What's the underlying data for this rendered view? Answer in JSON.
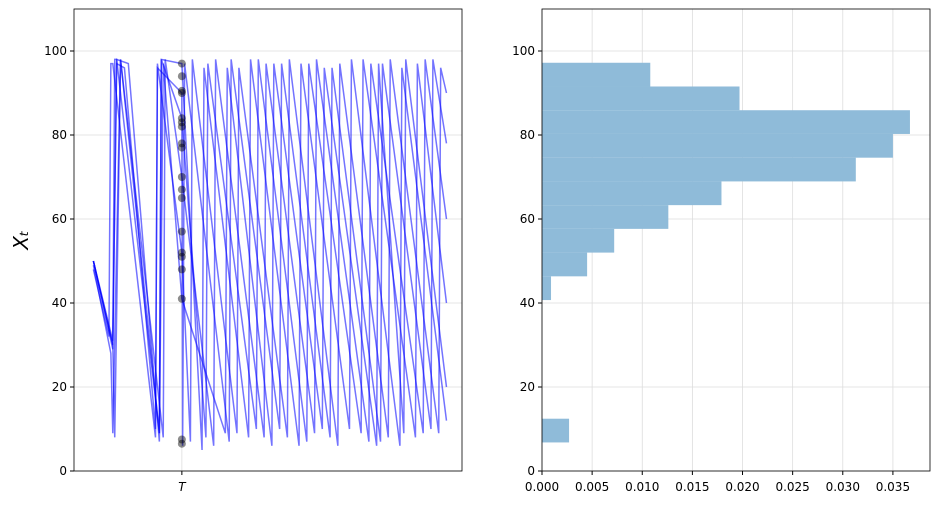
{
  "chart_data": [
    {
      "type": "line",
      "ylabel": "Xₜ",
      "xlim": [
        0,
        100
      ],
      "ylim": [
        0,
        110
      ],
      "xticks": [
        {
          "value": 27.8,
          "label": "T"
        }
      ],
      "yticks": [
        0,
        20,
        40,
        60,
        80,
        100
      ],
      "grid": true,
      "series": [
        {
          "color": "#0000ff",
          "x": [
            5,
            10,
            10.5,
            11,
            22,
            22.5,
            27.8,
            34,
            34.5,
            47,
            47.5,
            60,
            60.5,
            74,
            74.5,
            88,
            88.5,
            96
          ],
          "values": [
            50,
            30,
            98,
            98,
            9,
            98,
            84,
            8,
            97,
            10,
            98,
            7,
            97,
            9,
            98,
            8,
            97,
            40
          ]
        },
        {
          "color": "#0000ff",
          "x": [
            5,
            9.5,
            10,
            12,
            23,
            23.5,
            27.8,
            36,
            36.5,
            49,
            49.5,
            62,
            62.5,
            76,
            76.5,
            90,
            90.5,
            96
          ],
          "values": [
            49,
            28,
            9,
            98,
            8,
            98,
            70,
            6,
            98,
            8,
            97,
            9,
            98,
            7,
            97,
            9,
            98,
            60
          ]
        },
        {
          "color": "#0000ff",
          "x": [
            5,
            10,
            11,
            13,
            21,
            21.5,
            27.8,
            30,
            30.5,
            42,
            42.5,
            55,
            55.5,
            68,
            68.5,
            81,
            81.5,
            94,
            94.5,
            96
          ],
          "values": [
            50,
            31,
            97,
            96,
            10,
            97,
            52,
            7,
            98,
            9,
            96,
            8,
            98,
            6,
            97,
            8,
            98,
            9,
            96,
            90
          ]
        },
        {
          "color": "#0000ff",
          "x": [
            5,
            9,
            9.5,
            10,
            21,
            21.5,
            27.8,
            28,
            28.5,
            40,
            40.5,
            53,
            53.5,
            66,
            66.5,
            79,
            79.5,
            92,
            92.5,
            96
          ],
          "values": [
            48,
            32,
            97,
            97,
            8,
            96,
            90,
            6,
            97,
            7,
            98,
            10,
            97,
            8,
            96,
            7,
            97,
            10,
            98,
            78
          ]
        },
        {
          "color": "#0000ff",
          "x": [
            5,
            10,
            11,
            14,
            22,
            23,
            27.8,
            39,
            39.5,
            51,
            51.5,
            64,
            64.5,
            78,
            78.5,
            85,
            85.5,
            96
          ],
          "values": [
            50,
            29,
            98,
            97,
            7,
            97,
            41,
            9,
            96,
            6,
            97,
            10,
            96,
            6,
            97,
            9,
            98,
            20
          ]
        },
        {
          "color": "#0000ff",
          "x": [
            5,
            10,
            10.5,
            12,
            22,
            22.5,
            27.8,
            33,
            33.5,
            45,
            45.5,
            58,
            58.5,
            71,
            71.5,
            84,
            84.5,
            96
          ],
          "values": [
            50,
            30,
            8,
            98,
            9,
            98,
            97,
            5,
            96,
            8,
            98,
            6,
            97,
            10,
            98,
            6,
            96,
            12
          ]
        }
      ],
      "dots": {
        "color": "#000000",
        "values": [
          6.5,
          7.5,
          41,
          48,
          51,
          52,
          57,
          65,
          67,
          70,
          77,
          78,
          82,
          83,
          84,
          90,
          90.5,
          94,
          97
        ]
      }
    },
    {
      "type": "histogram",
      "orientation": "horizontal",
      "color": "#8fbbd9",
      "xlim": [
        0,
        0.0387
      ],
      "ylim": [
        0,
        110
      ],
      "bins": [
        6.8,
        12.45,
        18.1,
        23.75,
        29.4,
        35.05,
        40.7,
        46.35,
        52.0,
        57.65,
        63.3,
        68.95,
        74.6,
        80.25,
        85.9,
        91.55,
        97.2
      ],
      "values": [
        0.0027,
        0,
        0,
        0,
        0,
        0,
        0.0009,
        0.0045,
        0.0072,
        0.0126,
        0.0179,
        0.0313,
        0.035,
        0.0367,
        0.0197,
        0.0108
      ],
      "xticks": [
        {
          "value": 0,
          "label": "0.000"
        },
        {
          "value": 0.005,
          "label": "0.005"
        },
        {
          "value": 0.01,
          "label": "0.010"
        },
        {
          "value": 0.015,
          "label": "0.015"
        },
        {
          "value": 0.02,
          "label": "0.020"
        },
        {
          "value": 0.025,
          "label": "0.025"
        },
        {
          "value": 0.03,
          "label": "0.030"
        },
        {
          "value": 0.035,
          "label": "0.035"
        }
      ],
      "yticks": [
        0,
        20,
        40,
        60,
        80,
        100
      ],
      "grid": true
    }
  ]
}
